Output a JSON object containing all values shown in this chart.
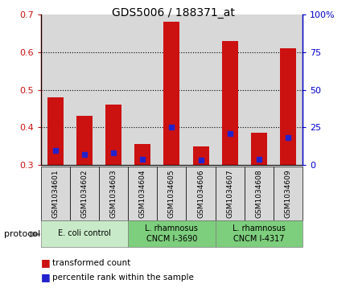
{
  "title": "GDS5006 / 188371_at",
  "samples": [
    "GSM1034601",
    "GSM1034602",
    "GSM1034603",
    "GSM1034604",
    "GSM1034605",
    "GSM1034606",
    "GSM1034607",
    "GSM1034608",
    "GSM1034609"
  ],
  "red_values": [
    0.48,
    0.43,
    0.46,
    0.355,
    0.68,
    0.35,
    0.63,
    0.385,
    0.61
  ],
  "blue_values": [
    0.338,
    0.328,
    0.333,
    0.315,
    0.4,
    0.314,
    0.384,
    0.315,
    0.372
  ],
  "ymin": 0.3,
  "ymax": 0.7,
  "yticks_left": [
    0.3,
    0.4,
    0.5,
    0.6,
    0.7
  ],
  "yticks_right": [
    0,
    25,
    50,
    75,
    100
  ],
  "groups": [
    {
      "label": "E. coli control",
      "start": 0,
      "end": 3,
      "color": "#c8eac8"
    },
    {
      "label": "L. rhamnosus\nCNCM I-3690",
      "start": 3,
      "end": 6,
      "color": "#7dce7d"
    },
    {
      "label": "L. rhamnosus\nCNCM I-4317",
      "start": 6,
      "end": 9,
      "color": "#7dce7d"
    }
  ],
  "bar_width": 0.55,
  "red_color": "#cc1111",
  "blue_color": "#2222cc",
  "bg_color": "#d8d8d8",
  "legend_red": "transformed count",
  "legend_blue": "percentile rank within the sample",
  "protocol_label": "protocol"
}
